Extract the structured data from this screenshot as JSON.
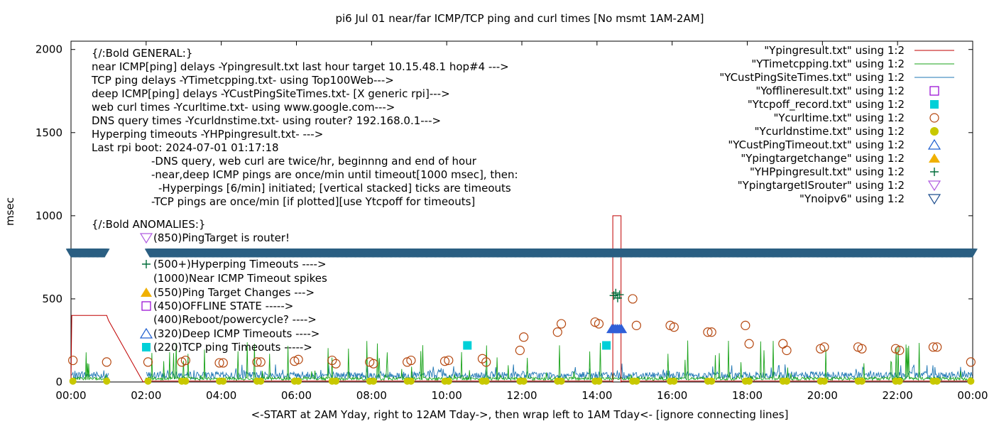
{
  "chart_data": {
    "type": "line",
    "title": "pi6 Jul 01  near/far ICMP/TCP ping and curl times [No msmt 1AM-2AM]",
    "xlabel": "<-START at 2AM Yday, right to 12AM Tday->, then wrap left to 1AM Tday<- [ignore connecting lines]",
    "ylabel": "msec",
    "xlim": [
      0,
      24
    ],
    "ylim": [
      0,
      2050
    ],
    "x_ticks": [
      "00:00",
      "02:00",
      "04:00",
      "06:00",
      "08:00",
      "10:00",
      "12:00",
      "14:00",
      "16:00",
      "18:00",
      "20:00",
      "22:00",
      "00:00"
    ],
    "y_ticks": [
      "0",
      "500",
      "1000",
      "1500",
      "2000"
    ],
    "y_tick_values": [
      0,
      500,
      1000,
      1500,
      2000
    ],
    "grid": false,
    "legend_position": "top-right",
    "legend": [
      {
        "label": "\"Ypingresult.txt\" using 1:2",
        "marker": "line",
        "color": "#c00000"
      },
      {
        "label": "\"YTimetcpping.txt\" using 1:2",
        "marker": "line",
        "color": "#1aa31a"
      },
      {
        "label": "\"YCustPingSiteTimes.txt\" using 1:2",
        "marker": "line",
        "color": "#1f77b4"
      },
      {
        "label": "\"Yofflineresult.txt\" using 1:2",
        "marker": "open-square",
        "color": "#9400d3"
      },
      {
        "label": "\"Ytcpoff_record.txt\" using 1:2",
        "marker": "filled-square",
        "color": "#00d0d8"
      },
      {
        "label": "\"Ycurltime.txt\" using 1:2",
        "marker": "open-circle",
        "color": "#b5470f"
      },
      {
        "label": "\"Ycurldnstime.txt\" using 1:2",
        "marker": "filled-circle",
        "color": "#c8c800"
      },
      {
        "label": "\"YCustPingTimeout.txt\" using 1:2",
        "marker": "open-triangle",
        "color": "#1f5fd0"
      },
      {
        "label": "\"Ypingtargetchange\" using 1:2",
        "marker": "filled-triangle",
        "color": "#f0b000"
      },
      {
        "label": "\"YHPpingresult.txt\" using 1:2",
        "marker": "plus",
        "color": "#006d3a"
      },
      {
        "label": "\"YpingtargetISrouter\" using 1:2",
        "marker": "open-down-triangle",
        "color": "#b05ce0"
      },
      {
        "label": "\"Ynoipv6\" using 1:2",
        "marker": "open-down-triangle",
        "color": "#1f4f8f"
      }
    ],
    "notes": [
      "{/:Bold GENERAL:}",
      "near ICMP[ping] delays -Ypingresult.txt last hour target 10.15.48.1 hop#4 --->",
      "TCP ping delays -YTimetcpping.txt- using Top100Web--->",
      "deep ICMP[ping] delays -YCustPingSiteTimes.txt- [X generic rpi]--->",
      "web curl times -Ycurltime.txt- using www.google.com--->",
      "DNS query times -Ycurldnstime.txt- using router? 192.168.0.1--->",
      "Hyperping timeouts -YHPpingresult.txt- --->",
      "Last rpi boot: 2024-07-01 01:17:18",
      "-DNS query, web curl are twice/hr, beginnng and end of hour",
      "-near,deep ICMP pings are once/min until timeout[1000 msec], then:",
      "-Hyperpings [6/min] initiated; [vertical stacked] ticks are timeouts",
      "-TCP pings are once/min [if plotted][use Ytcpoff for timeouts]"
    ],
    "anomalies_title": "{/:Bold ANOMALIES:}",
    "anomalies": [
      {
        "text": "(850)PingTarget is router!",
        "marker": "open-down-triangle",
        "color": "#b05ce0"
      },
      {
        "text": "(500+)Hyperping Timeouts ---->",
        "marker": "plus",
        "color": "#006d3a"
      },
      {
        "text": "(1000)Near ICMP Timeout spikes",
        "marker": "none",
        "color": ""
      },
      {
        "text": "(550)Ping Target Changes --->",
        "marker": "filled-triangle",
        "color": "#f0b000"
      },
      {
        "text": "(450)OFFLINE STATE ----->",
        "marker": "open-square",
        "color": "#9400d3"
      },
      {
        "text": "(400)Reboot/powercycle? ---->",
        "marker": "none",
        "color": ""
      },
      {
        "text": "(320)Deep ICMP Timeouts ---->",
        "marker": "open-triangle",
        "color": "#1f5fd0"
      },
      {
        "text": "(220)TCP ping Timeouts ----->",
        "marker": "filled-square",
        "color": "#00d0d8"
      }
    ],
    "series": [
      {
        "name": "\"Ypingresult.txt\" using 1:2",
        "color": "#c00000",
        "x": [
          0,
          0.02,
          0.95,
          1.0,
          1.92,
          2.0,
          14.4,
          14.42,
          14.42,
          14.64,
          14.64,
          14.66,
          24.0
        ],
        "y": [
          0,
          400,
          400,
          370,
          0,
          5,
          5,
          0,
          1000,
          1000,
          0,
          5,
          5
        ]
      },
      {
        "name": "\"YTimetcpping.txt\" using 1:2",
        "color": "#1aa31a",
        "x_start": 0,
        "x_end": 24,
        "baseline": 20,
        "note": "noisy, spikes up to about 250"
      },
      {
        "name": "\"YCustPingSiteTimes.txt\" using 1:2",
        "color": "#1f77b4",
        "x_start": 0,
        "x_end": 24,
        "baseline": 40,
        "note": "noisy, mostly 20-70"
      },
      {
        "name": "\"Ynoipv6\" using 1:2",
        "color": "#2b5f82",
        "x": [
          0,
          1.0,
          2.0,
          24.0
        ],
        "y": [
          775,
          775,
          775,
          775
        ],
        "gap": [
          1.0,
          2.0
        ]
      },
      {
        "name": "\"Ycurltime.txt\" using 1:2",
        "color": "#b5470f",
        "x": [
          0.05,
          0.95,
          2.05,
          2.95,
          3.05,
          3.95,
          4.05,
          4.95,
          5.05,
          5.95,
          6.05,
          6.95,
          7.05,
          7.95,
          8.05,
          8.95,
          9.05,
          9.95,
          10.05,
          10.95,
          11.05,
          11.95,
          12.05,
          12.95,
          13.05,
          13.95,
          14.05,
          14.95,
          15.05,
          15.95,
          16.05,
          16.95,
          17.05,
          17.95,
          18.05,
          18.95,
          19.05,
          19.95,
          20.05,
          20.95,
          21.05,
          21.95,
          22.05,
          22.95,
          23.05,
          23.95
        ],
        "y": [
          130,
          120,
          120,
          120,
          130,
          115,
          115,
          120,
          120,
          125,
          135,
          130,
          110,
          120,
          110,
          120,
          130,
          125,
          130,
          140,
          120,
          190,
          270,
          300,
          350,
          360,
          350,
          500,
          340,
          340,
          330,
          300,
          300,
          340,
          230,
          230,
          190,
          200,
          210,
          210,
          200,
          200,
          190,
          210,
          210,
          120
        ]
      },
      {
        "name": "\"Ycurldnstime.txt\" using 1:2",
        "color": "#c8c800",
        "x": [
          0.05,
          0.95,
          2.05,
          2.95,
          3.05,
          3.95,
          4.05,
          4.95,
          5.05,
          5.95,
          6.05,
          6.95,
          7.05,
          7.95,
          8.05,
          8.95,
          9.05,
          9.95,
          10.05,
          10.95,
          11.05,
          11.95,
          12.05,
          12.95,
          13.05,
          13.95,
          14.05,
          14.95,
          15.05,
          15.95,
          16.05,
          16.95,
          17.05,
          17.95,
          18.05,
          18.95,
          19.05,
          19.95,
          20.05,
          20.95,
          21.05,
          21.95,
          22.05,
          22.95,
          23.05,
          23.95
        ],
        "y": [
          5,
          5,
          5,
          5,
          5,
          5,
          5,
          5,
          5,
          5,
          5,
          5,
          5,
          5,
          5,
          5,
          5,
          5,
          5,
          5,
          5,
          5,
          5,
          5,
          5,
          5,
          5,
          5,
          5,
          5,
          5,
          5,
          5,
          5,
          5,
          5,
          5,
          5,
          5,
          5,
          5,
          5,
          5,
          5,
          5,
          5
        ]
      },
      {
        "name": "\"Ytcpoff_record.txt\" using 1:2",
        "color": "#00d0d8",
        "x": [
          10.55,
          14.25
        ],
        "y": [
          220,
          220
        ]
      },
      {
        "name": "\"YCustPingTimeout.txt\" using 1:2",
        "color": "#2f5fd8",
        "x": [
          14.4,
          14.45,
          14.5,
          14.55,
          14.6,
          14.65
        ],
        "y": [
          320,
          320,
          320,
          320,
          320,
          320
        ]
      },
      {
        "name": "\"YHPpingresult.txt\" using 1:2",
        "color": "#006d3a",
        "x": [
          14.45,
          14.5,
          14.55,
          14.6
        ],
        "y": [
          520,
          535,
          505,
          525
        ]
      }
    ]
  }
}
